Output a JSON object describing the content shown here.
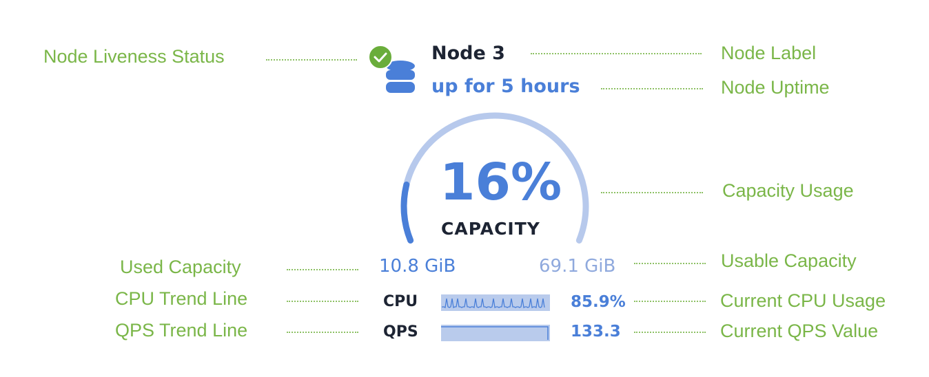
{
  "annotations": {
    "liveness": "Node Liveness Status",
    "node_label": "Node Label",
    "node_uptime": "Node Uptime",
    "capacity_usage": "Capacity Usage",
    "used_capacity": "Used Capacity",
    "usable_capacity": "Usable Capacity",
    "cpu_trend": "CPU Trend Line",
    "current_cpu": "Current CPU Usage",
    "qps_trend": "QPS Trend Line",
    "current_qps": "Current QPS Value"
  },
  "node": {
    "label": "Node 3",
    "uptime": "up for 5 hours",
    "status": "live",
    "status_icon": "check-circle-icon",
    "node_icon": "database-icon"
  },
  "capacity": {
    "percent_text": "16%",
    "percent": 16,
    "caption": "CAPACITY",
    "used": "10.8 GiB",
    "usable": "69.1 GiB"
  },
  "cpu": {
    "label": "CPU",
    "value": "85.9%"
  },
  "qps": {
    "label": "QPS",
    "value": "133.3"
  },
  "colors": {
    "accent": "#4a7fd8",
    "annotation": "#7ab648",
    "gauge_track": "#b7c9ec",
    "status_ok": "#6aad3b",
    "text_dark": "#1d2433"
  }
}
